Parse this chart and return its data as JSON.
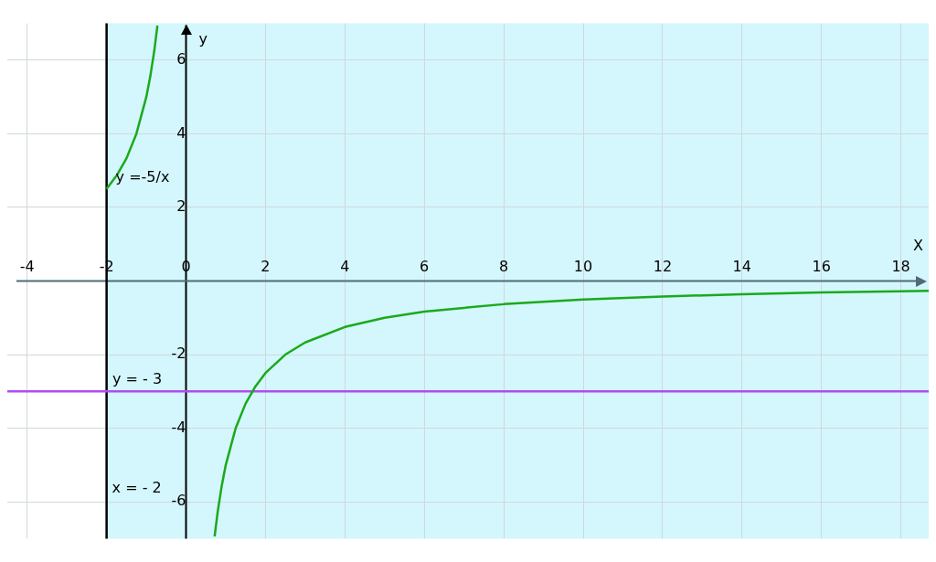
{
  "chart_data": {
    "type": "line",
    "xlabel": "X",
    "ylabel": "y",
    "xlim": [
      -4.5,
      18.7
    ],
    "ylim": [
      -7.0,
      7.0
    ],
    "xticks": [
      -4,
      -2,
      0,
      2,
      4,
      6,
      8,
      10,
      12,
      14,
      16,
      18
    ],
    "yticks": [
      -6,
      -4,
      -2,
      2,
      4,
      6
    ],
    "grid": true,
    "legend": false,
    "marker": "none",
    "line_style": "solid",
    "series": [
      {
        "color": "#1aaa1a",
        "x": [
          -2,
          -1.75,
          -1.5,
          -1.25,
          -1,
          -0.9,
          -0.8,
          -0.72,
          0,
          0.72,
          0.8,
          0.9,
          1,
          1.25,
          1.5,
          1.75,
          2,
          2.5,
          3,
          4,
          5,
          6,
          8,
          10,
          12,
          14,
          16,
          18,
          18.7
        ],
        "values": [
          2.5,
          2.86,
          3.33,
          4,
          5,
          5.56,
          6.25,
          6.94,
          null,
          -6.94,
          -6.25,
          -5.56,
          -5,
          -4,
          -3.33,
          -2.86,
          -2.5,
          -2,
          -1.67,
          -1.25,
          -1,
          -0.83,
          -0.63,
          -0.5,
          -0.42,
          -0.36,
          -0.31,
          -0.28,
          -0.27
        ]
      }
    ],
    "ref_lines": [
      {
        "axis": "x",
        "value": -2,
        "label": "x = - 2",
        "color": "#000000",
        "line_style": "solid"
      },
      {
        "axis": "y",
        "value": -3,
        "label": "y = - 3",
        "color": "#b04cf0",
        "line_style": "solid"
      }
    ],
    "bands": [
      {
        "axis": "x",
        "from": -2,
        "to": 18.7,
        "color": "#d4f6fd"
      }
    ],
    "annotations": [
      {
        "text": "y =-5/x",
        "x": -2,
        "y": 2.5
      }
    ]
  }
}
